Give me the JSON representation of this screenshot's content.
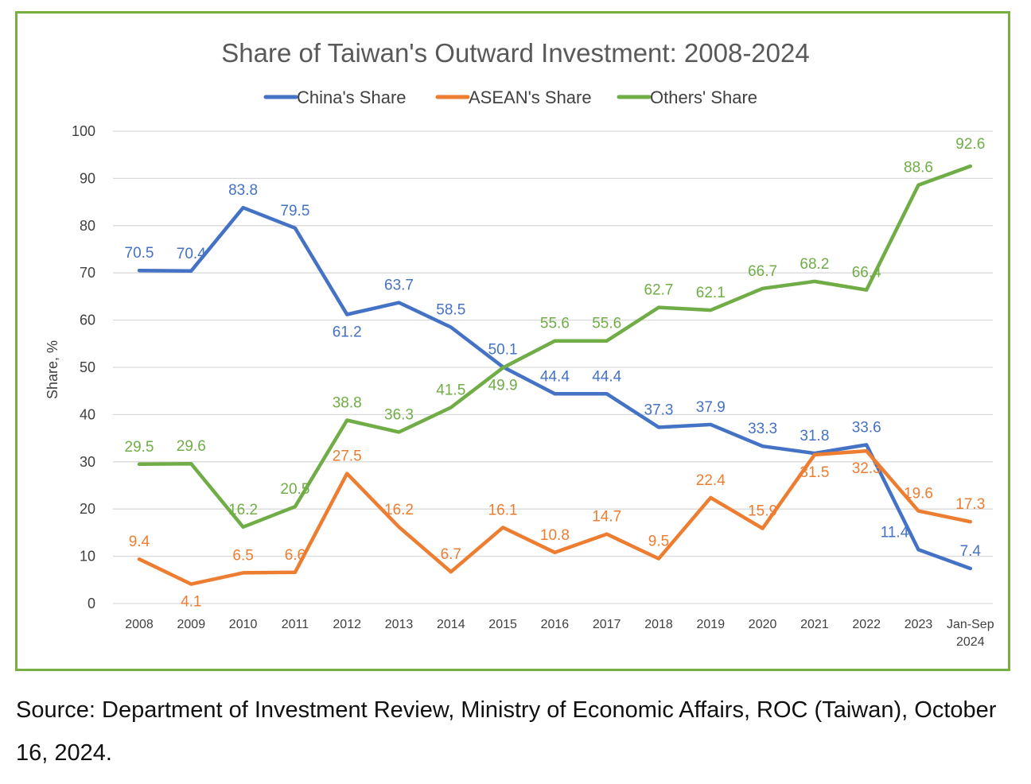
{
  "chart_data": {
    "type": "line",
    "title": "Share of Taiwan's Outward Investment: 2008-2024",
    "ylabel": "Share, %",
    "xlabel": "",
    "ylim": [
      0,
      100
    ],
    "yticks": [
      0,
      10,
      20,
      30,
      40,
      50,
      60,
      70,
      80,
      90,
      100
    ],
    "grid": true,
    "legend_position": "top",
    "categories": [
      "2008",
      "2009",
      "2010",
      "2011",
      "2012",
      "2013",
      "2014",
      "2015",
      "2016",
      "2017",
      "2018",
      "2019",
      "2020",
      "2021",
      "2022",
      "2023",
      "Jan-Sep\n2024"
    ],
    "series": [
      {
        "name": "China's Share",
        "color": "#4472c4",
        "values": [
          70.5,
          70.4,
          83.8,
          79.5,
          61.2,
          63.7,
          58.5,
          50.1,
          44.4,
          44.4,
          37.3,
          37.9,
          33.3,
          31.8,
          33.6,
          11.4,
          7.4
        ]
      },
      {
        "name": "ASEAN's Share",
        "color": "#ed7d31",
        "values": [
          9.4,
          4.1,
          6.5,
          6.6,
          27.5,
          16.2,
          6.7,
          16.1,
          10.8,
          14.7,
          9.5,
          22.4,
          15.9,
          31.5,
          32.3,
          19.6,
          17.3
        ]
      },
      {
        "name": "Others' Share",
        "color": "#70ad47",
        "values": [
          29.5,
          29.6,
          16.2,
          20.5,
          38.8,
          36.3,
          41.5,
          49.9,
          55.6,
          55.6,
          62.7,
          62.1,
          66.7,
          68.2,
          66.4,
          88.6,
          92.6
        ]
      }
    ]
  },
  "source_note": "Source: Department of Investment Review, Ministry of Economic Affairs, ROC (Taiwan), October 16, 2024."
}
